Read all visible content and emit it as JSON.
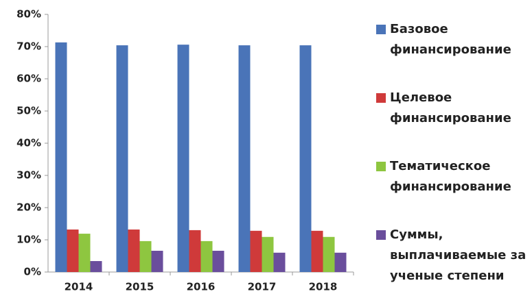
{
  "chart_data": {
    "type": "bar",
    "categories": [
      "2014",
      "2015",
      "2016",
      "2017",
      "2018"
    ],
    "series": [
      {
        "name": "Базовое финансирование",
        "color": "#4a74b8",
        "values": [
          71.3,
          70.4,
          70.6,
          70.4,
          70.4
        ]
      },
      {
        "name": "Целевое финансирование",
        "color": "#cf3a3a",
        "values": [
          13.2,
          13.2,
          13.0,
          12.8,
          12.8
        ]
      },
      {
        "name": "Тематическое финансирование",
        "color": "#8ec640",
        "values": [
          11.9,
          9.6,
          9.6,
          10.9,
          10.9
        ]
      },
      {
        "name": "Суммы, выплачиваемые за ученые степени",
        "color": "#6a4e9c",
        "values": [
          3.4,
          6.6,
          6.6,
          6.0,
          6.0
        ]
      }
    ],
    "ylim": [
      0,
      80
    ],
    "yticks": [
      {
        "value": 0,
        "label": "0%"
      },
      {
        "value": 10,
        "label": "10%"
      },
      {
        "value": 20,
        "label": "20%"
      },
      {
        "value": 30,
        "label": "30%"
      },
      {
        "value": 40,
        "label": "40%"
      },
      {
        "value": 50,
        "label": "50%"
      },
      {
        "value": 60,
        "label": "60%"
      },
      {
        "value": 70,
        "label": "70%"
      },
      {
        "value": 80,
        "label": "80%"
      }
    ],
    "grid": false,
    "legend": "right"
  }
}
